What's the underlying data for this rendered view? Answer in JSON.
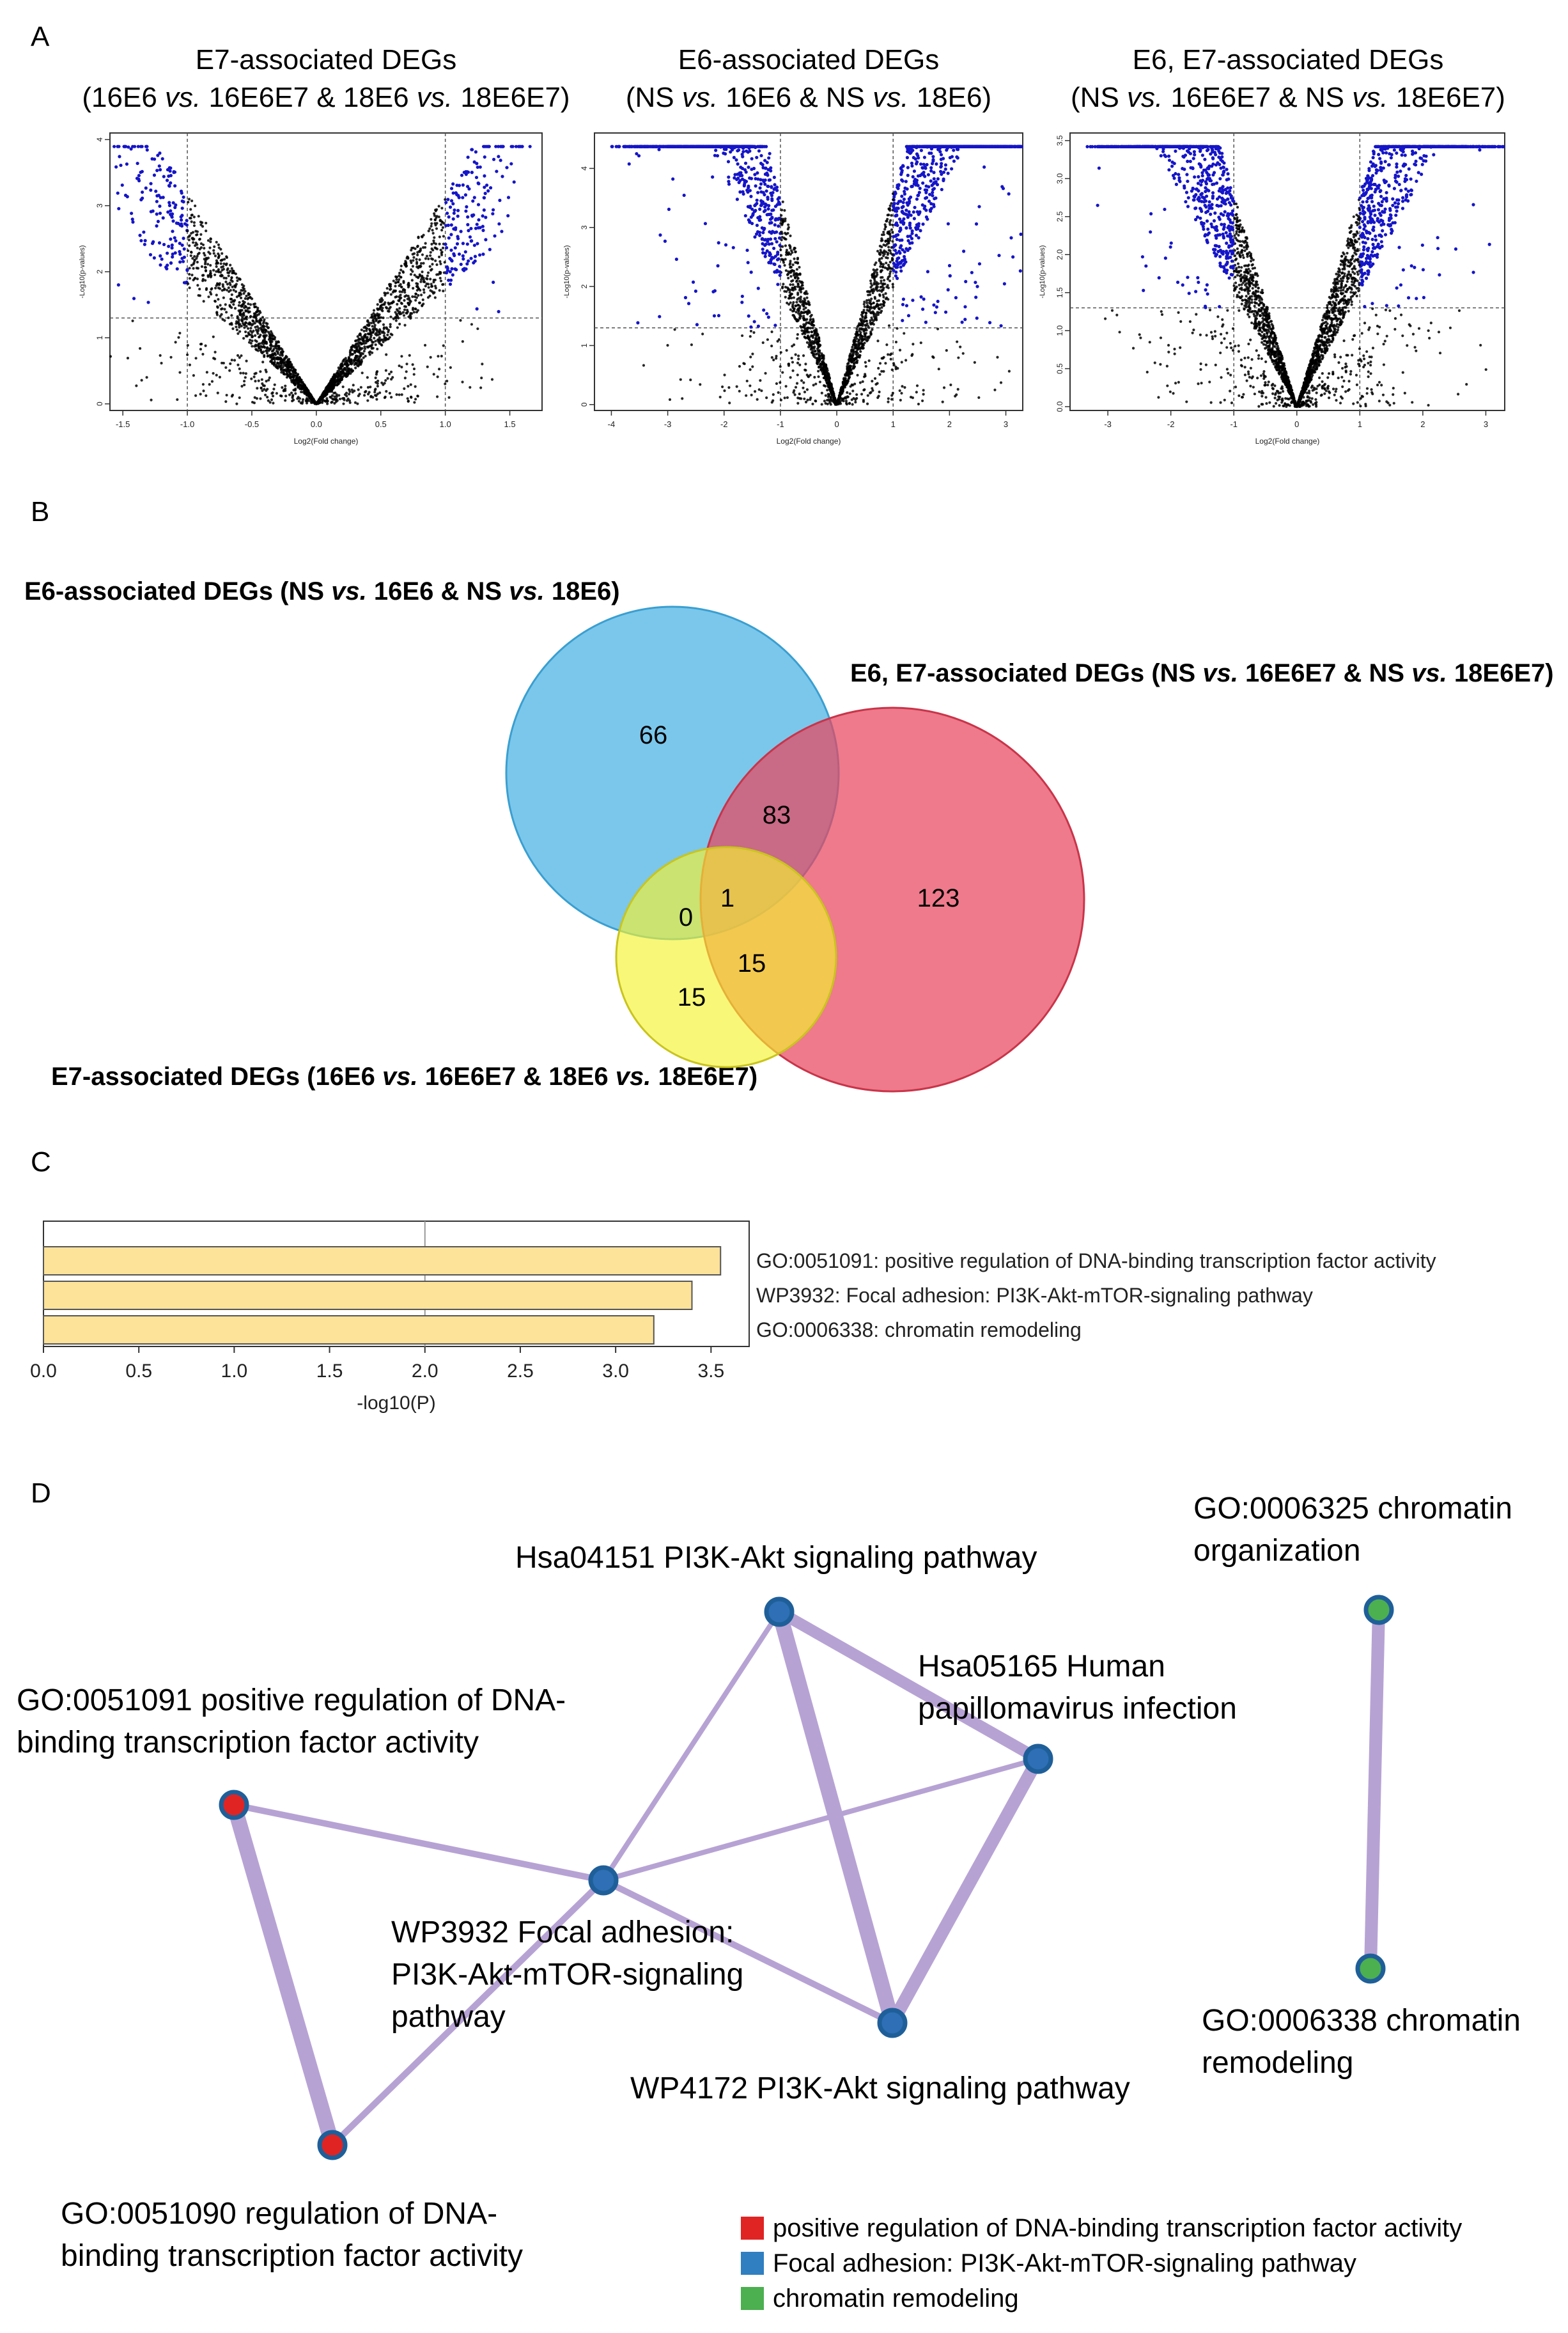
{
  "panel_letters": {
    "a": "A",
    "b": "B",
    "c": "C",
    "d": "D"
  },
  "panel_a": {
    "plots": [
      {
        "title_line1": "E7-associated DEGs",
        "title_line2_parts": [
          "(16E6 ",
          "vs.",
          " 16E6E7 & 18E6 ",
          "vs.",
          " 18E6E7)"
        ],
        "xlabel": "Log2(Fold change)",
        "ylabel": "-Log10(p-values)",
        "x_ticks": [
          "-1.5",
          "-1.0",
          "-0.5",
          "0.0",
          "0.5",
          "1.0",
          "1.5"
        ],
        "y_ticks": [
          "0",
          "1",
          "2",
          "3",
          "4"
        ]
      },
      {
        "title_line1": "E6-associated DEGs",
        "title_line2_parts": [
          "(NS ",
          "vs.",
          " 16E6 & NS ",
          "vs.",
          " 18E6)"
        ],
        "xlabel": "Log2(Fold change)",
        "ylabel": "-Log10(p-values)",
        "x_ticks": [
          "-4",
          "-3",
          "-2",
          "-1",
          "0",
          "1",
          "2",
          "3"
        ],
        "y_ticks": [
          "0",
          "1",
          "2",
          "3",
          "4"
        ]
      },
      {
        "title_line1": "E6, E7-associated DEGs",
        "title_line2_parts": [
          "(NS ",
          "vs.",
          " 16E6E7 & NS ",
          "vs.",
          " 18E6E7)"
        ],
        "xlabel": "Log2(Fold change)",
        "ylabel": "-Log10(p-values)",
        "x_ticks": [
          "-3",
          "-2",
          "-1",
          "0",
          "1",
          "2",
          "3"
        ],
        "y_ticks": [
          "0.0",
          "0.5",
          "1.0",
          "1.5",
          "2.0",
          "2.5",
          "3.0",
          "3.5"
        ]
      }
    ]
  },
  "panel_b": {
    "label_e6_parts": [
      "E6-associated DEGs (NS ",
      "vs.",
      " 16E6 & NS ",
      "vs.",
      " 18E6)"
    ],
    "label_e6e7_parts": [
      "E6, E7-associated DEGs (NS ",
      "vs.",
      " 16E6E7 & NS ",
      "vs.",
      " 18E6E7)"
    ],
    "label_e7_parts": [
      "E7-associated DEGs (16E6 ",
      "vs.",
      " 16E6E7 & 18E6 ",
      "vs.",
      " 18E6E7)"
    ],
    "counts": {
      "e6_only": "66",
      "e6_e6e7": "83",
      "e6e7_only": "123",
      "e6_e7": "0",
      "all_three": "1",
      "e7_e6e7": "15",
      "e7_only": "15"
    }
  },
  "chart_data": [
    {
      "type": "bar",
      "orientation": "horizontal",
      "categories": [
        "GO:0051091: positive regulation of DNA-binding transcription factor activity",
        "WP3932: Focal adhesion: PI3K-Akt-mTOR-signaling pathway",
        "GO:0006338: chromatin remodeling"
      ],
      "values": [
        3.55,
        3.4,
        3.2
      ],
      "xlabel": "-log10(P)",
      "x_ticks": [
        "0.0",
        "0.5",
        "1.0",
        "1.5",
        "2.0",
        "2.5",
        "3.0",
        "3.5"
      ],
      "xlim": [
        0,
        3.7
      ],
      "reference_line": 2.0,
      "bar_color": "#fde29a"
    },
    {
      "type": "venn",
      "sets": [
        "E6-associated DEGs",
        "E6, E7-associated DEGs",
        "E7-associated DEGs"
      ],
      "regions": {
        "E6 only": 66,
        "E6 & E6E7": 83,
        "E6E7 only": 123,
        "E6 & E7": 0,
        "E6 & E6E7 & E7": 1,
        "E6E7 & E7": 15,
        "E7 only": 15
      },
      "colors": {
        "E6": "#4fb4e6",
        "E6E7": "#e8475e",
        "E7": "#f5f230"
      }
    }
  ],
  "panel_d": {
    "nodes": {
      "pi3k_akt_hsa": "Hsa04151 PI3K-Akt signaling pathway",
      "hpv_line1": "Hsa05165 Human",
      "hpv_line2": "papillomavirus infection",
      "go51091_line1": "GO:0051091 positive regulation of DNA-",
      "go51091_line2": "binding transcription factor activity",
      "wp3932_line1": "WP3932 Focal adhesion:",
      "wp3932_line2": "PI3K-Akt-mTOR-signaling",
      "wp3932_line3": "pathway",
      "wp4172": "WP4172 PI3K-Akt signaling pathway",
      "go51090_line1": "GO:0051090 regulation of DNA-",
      "go51090_line2": "binding transcription factor activity",
      "go6325_line1": "GO:0006325 chromatin",
      "go6325_line2": "organization",
      "go6338_line1": "GO:0006338 chromatin",
      "go6338_line2": "remodeling"
    },
    "legend": [
      {
        "label": "positive regulation of DNA-binding transcription factor activity",
        "color": "#e02424"
      },
      {
        "label": "Focal adhesion: PI3K-Akt-mTOR-signaling pathway",
        "color": "#2f7fc1"
      },
      {
        "label": "chromatin remodeling",
        "color": "#4caf50"
      }
    ],
    "edge_color": "#b7a2d4",
    "node_colors": {
      "red": "#e02424",
      "blue": "#2e6fb5",
      "green": "#4caf50",
      "ring": "#1f5f99"
    }
  }
}
